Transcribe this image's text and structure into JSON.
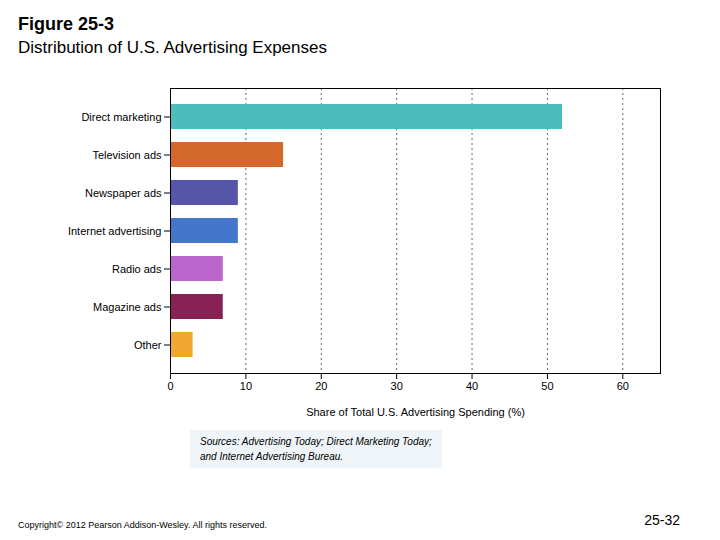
{
  "chart_data": {
    "type": "bar",
    "orientation": "horizontal",
    "title": "Figure 25-3",
    "subtitle": "Distribution of U.S. Advertising Expenses",
    "categories": [
      "Direct marketing",
      "Television ads",
      "Newspaper ads",
      "Internet advertising",
      "Radio ads",
      "Magazine ads",
      "Other"
    ],
    "values": [
      52,
      15,
      9,
      9,
      7,
      7,
      3
    ],
    "colors": [
      "#4bbdbd",
      "#d4682a",
      "#5555aa",
      "#4477cc",
      "#bb66cc",
      "#882255",
      "#f0a830"
    ],
    "xlabel": "Share of Total U.S. Advertising Spending (%)",
    "xlim": [
      0,
      65
    ],
    "xticks": [
      0,
      10,
      20,
      30,
      40,
      50,
      60
    ],
    "grid": true,
    "annotations": [
      "Sources: Advertising Today; Direct Marketing Today;\nand Internet Advertising Bureau.",
      "Copyright© 2012 Pearson Addison-Wesley. All rights reserved.",
      "25-32"
    ]
  }
}
